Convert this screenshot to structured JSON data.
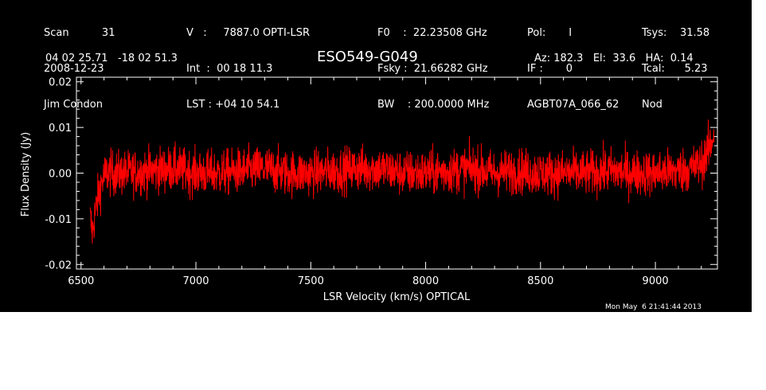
{
  "header": {
    "col1": [
      "Scan          31",
      "2008-12-23",
      "Jim Condon"
    ],
    "col2": [
      "V   :     7887.0 OPTI-LSR",
      "Int  :  00 18 11.3",
      "LST : +04 10 54.1"
    ],
    "col3": [
      "F0    :  22.23508 GHz",
      "Fsky :  21.66282 GHz",
      "BW    : 200.0000 MHz"
    ],
    "col4": [
      "Pol:       I",
      "IF :       0",
      "AGBT07A_066_62"
    ],
    "col5": [
      "Tsys:    31.58",
      "Tcal:      5.23",
      "Nod"
    ],
    "coords": "04 02 25.71   -18 02 51.3",
    "source": "ESO549-G049",
    "azel": "Az: 182.3   El:  33.6   HA:  0.14",
    "timestamp": "Mon May  6 21:41:44 2013"
  },
  "chart_data": {
    "type": "line",
    "xlabel": "LSR Velocity (km/s) OPTICAL",
    "ylabel": "Flux Density (Jy)",
    "xlim": [
      6480,
      9270
    ],
    "ylim": [
      -0.021,
      0.021
    ],
    "x_ticks": [
      6500,
      7000,
      7500,
      8000,
      8500,
      9000
    ],
    "y_ticks": [
      -0.02,
      -0.01,
      0.0,
      0.01,
      0.02
    ],
    "x_tick_labels": [
      "6500",
      "7000",
      "7500",
      "8000",
      "8500",
      "9000"
    ],
    "y_tick_labels": [
      "-0.02",
      "-0.01",
      "0.00",
      "0.01",
      "0.02"
    ],
    "series": [
      {
        "color": "#ff0000",
        "x": [
          6540,
          6550,
          6560,
          6575,
          6590,
          6610,
          6650,
          6700,
          6800,
          6900,
          7000,
          7100,
          7200,
          7300,
          7400,
          7500,
          7600,
          7700,
          7800,
          7900,
          8000,
          8100,
          8200,
          8300,
          8400,
          8500,
          8600,
          8700,
          8800,
          8900,
          9000,
          9100,
          9150,
          9200,
          9220,
          9240,
          9255
        ],
        "y": [
          -0.01,
          -0.013,
          -0.009,
          -0.005,
          -0.002,
          0.0,
          0.0,
          0.0,
          0.0005,
          0.001,
          0.0,
          0.0,
          0.0005,
          0.001,
          0.0,
          0.0,
          0.0005,
          0.001,
          0.001,
          0.0,
          0.0,
          0.0005,
          0.001,
          0.0,
          0.0005,
          0.0,
          0.0,
          0.0,
          0.0005,
          0.0,
          0.0,
          0.0005,
          0.001,
          0.002,
          0.004,
          0.006,
          0.009
        ],
        "noise_rms": 0.0025
      }
    ],
    "grid": false,
    "colors": {
      "background": "#000000",
      "axes": "#ffffff",
      "trace": "#ff0000"
    }
  }
}
